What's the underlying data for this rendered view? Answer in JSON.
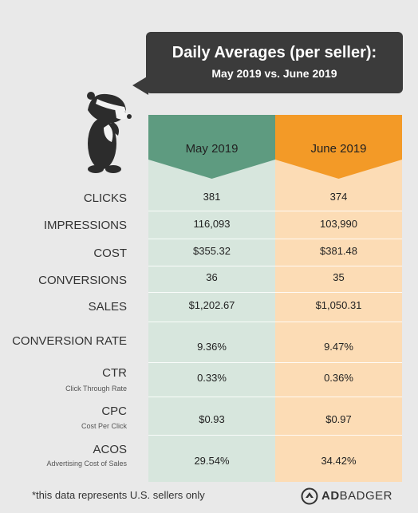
{
  "callout": {
    "title": "Daily Averages (per seller):",
    "subtitle": "May 2019 vs. June 2019"
  },
  "columns": [
    {
      "label": "May 2019",
      "color": "#5e9b80"
    },
    {
      "label": "June 2019",
      "color": "#f39a27"
    }
  ],
  "rows": [
    {
      "label": "CLICKS",
      "sublabel": "",
      "may": "381",
      "june": "374"
    },
    {
      "label": "IMPRESSIONS",
      "sublabel": "",
      "may": "116,093",
      "june": "103,990"
    },
    {
      "label": "COST",
      "sublabel": "",
      "may": "$355.32",
      "june": "$381.48"
    },
    {
      "label": "CONVERSIONS",
      "sublabel": "",
      "may": "36",
      "june": "35"
    },
    {
      "label": "SALES",
      "sublabel": "",
      "may": "$1,202.67",
      "june": "$1,050.31"
    },
    {
      "label": "CONVERSION RATE",
      "sublabel": "",
      "may": "9.36%",
      "june": "9.47%"
    },
    {
      "label": "CTR",
      "sublabel": "Click Through Rate",
      "may": "0.33%",
      "june": "0.36%"
    },
    {
      "label": "CPC",
      "sublabel": "Cost Per Click",
      "may": "$0.93",
      "june": "$0.97"
    },
    {
      "label": "ACOS",
      "sublabel": "Advertising Cost of Sales",
      "may": "29.54%",
      "june": "34.42%"
    }
  ],
  "footnote": "*this data represents U.S. sellers only",
  "brand": {
    "bold": "AD",
    "rest": "BADGER",
    "icon": "adbadger-logo-icon"
  },
  "mascot": {
    "icon": "badger-mascot-icon"
  }
}
